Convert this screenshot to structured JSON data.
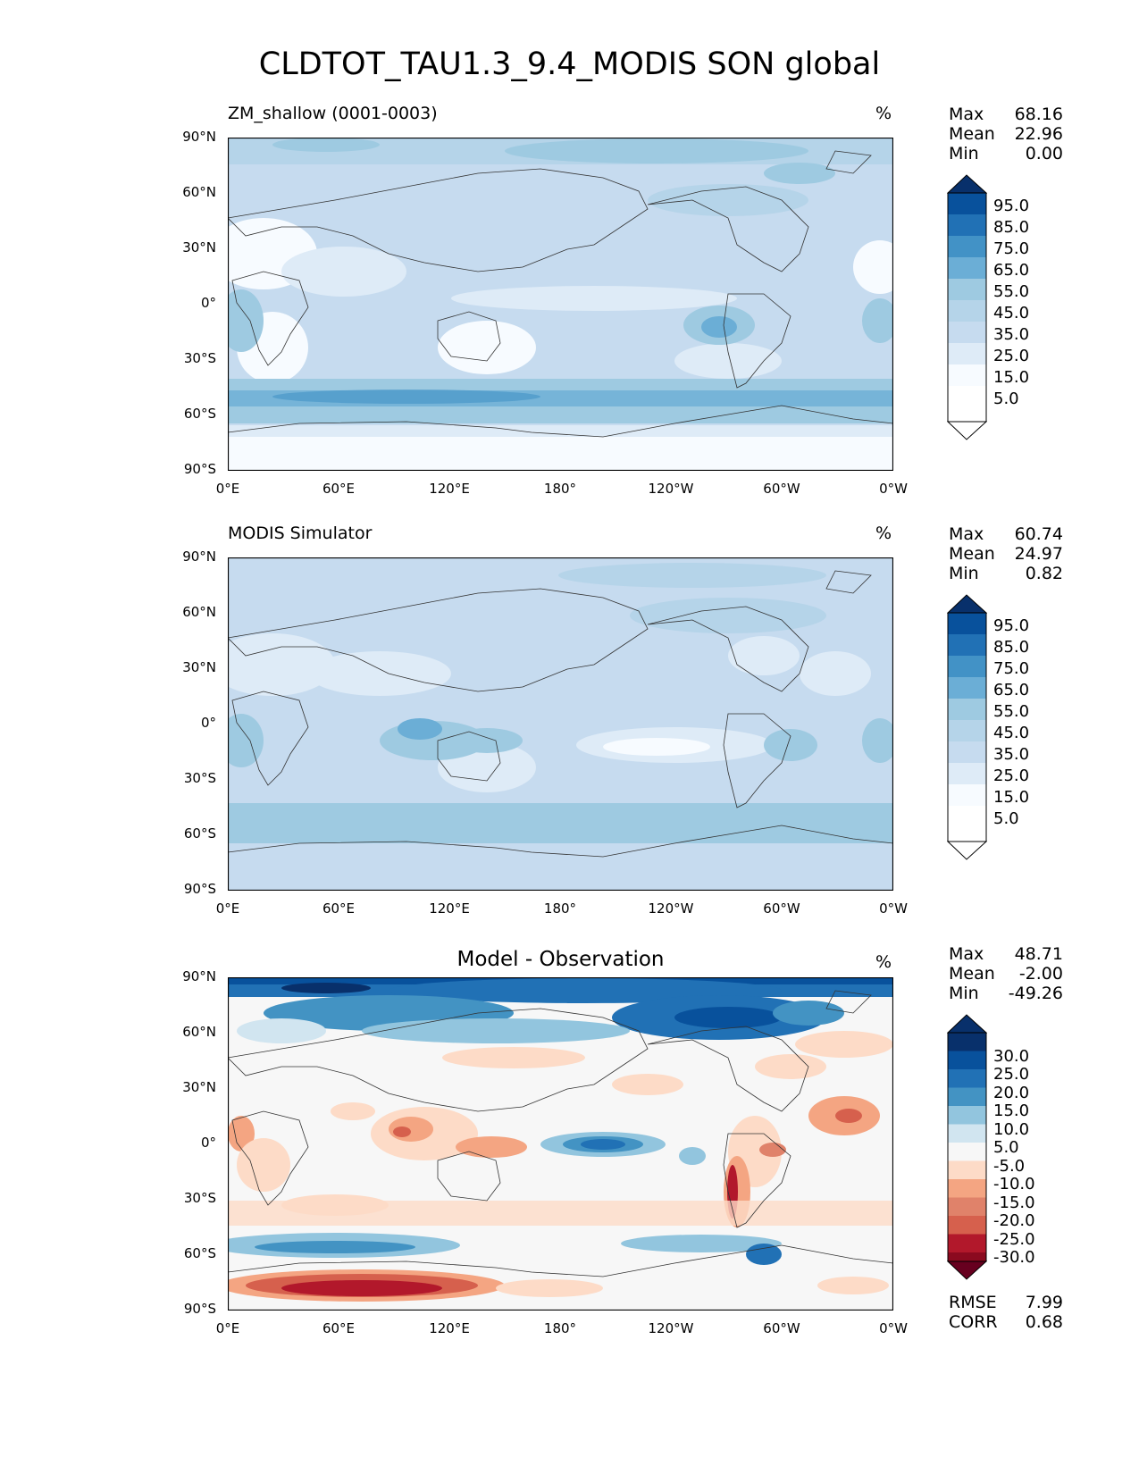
{
  "title": "CLDTOT_TAU1.3_9.4_MODIS SON global",
  "lat_labels": [
    "90°N",
    "60°N",
    "30°N",
    "0°",
    "30°S",
    "60°S",
    "90°S"
  ],
  "lon_labels": [
    "0°E",
    "60°E",
    "120°E",
    "180°",
    "120°W",
    "60°W",
    "0°W"
  ],
  "panels": [
    {
      "title": "ZM_shallow (0001-0003)",
      "unit": "%",
      "stats": [
        {
          "label": "Max",
          "value": "68.16"
        },
        {
          "label": "Mean",
          "value": "22.96"
        },
        {
          "label": "Min",
          "value": "0.00"
        }
      ],
      "colorbar": {
        "labels": [
          "95.0",
          "85.0",
          "75.0",
          "65.0",
          "55.0",
          "45.0",
          "35.0",
          "25.0",
          "15.0",
          "5.0"
        ],
        "colors": [
          "#08306b",
          "#08519c",
          "#2171b5",
          "#4292c6",
          "#6baed6",
          "#9ecae1",
          "#b5d4e9",
          "#c6dbef",
          "#deebf7",
          "#f7fbff",
          "#ffffff"
        ]
      }
    },
    {
      "title": "MODIS Simulator",
      "unit": "%",
      "stats": [
        {
          "label": "Max",
          "value": "60.74"
        },
        {
          "label": "Mean",
          "value": "24.97"
        },
        {
          "label": "Min",
          "value": "0.82"
        }
      ],
      "colorbar": {
        "labels": [
          "95.0",
          "85.0",
          "75.0",
          "65.0",
          "55.0",
          "45.0",
          "35.0",
          "25.0",
          "15.0",
          "5.0"
        ],
        "colors": [
          "#08306b",
          "#08519c",
          "#2171b5",
          "#4292c6",
          "#6baed6",
          "#9ecae1",
          "#b5d4e9",
          "#c6dbef",
          "#deebf7",
          "#f7fbff",
          "#ffffff"
        ]
      }
    },
    {
      "title": "Model - Observation",
      "unit": "%",
      "stats": [
        {
          "label": "Max",
          "value": "48.71"
        },
        {
          "label": "Mean",
          "value": "-2.00"
        },
        {
          "label": "Min",
          "value": "-49.26"
        }
      ],
      "colorbar": {
        "labels": [
          "30.0",
          "25.0",
          "20.0",
          "15.0",
          "10.0",
          "5.0",
          "-5.0",
          "-10.0",
          "-15.0",
          "-20.0",
          "-25.0",
          "-30.0"
        ],
        "colors": [
          "#08306b",
          "#08519c",
          "#2171b5",
          "#4393c3",
          "#92c5de",
          "#d1e5f0",
          "#f7f7f7",
          "#fddbc7",
          "#f4a582",
          "#e0826a",
          "#d6604d",
          "#b2182b",
          "#8b0a1f",
          "#67001f"
        ]
      },
      "error_stats": [
        {
          "label": "RMSE",
          "value": "7.99"
        },
        {
          "label": "CORR",
          "value": "0.68"
        }
      ]
    }
  ]
}
